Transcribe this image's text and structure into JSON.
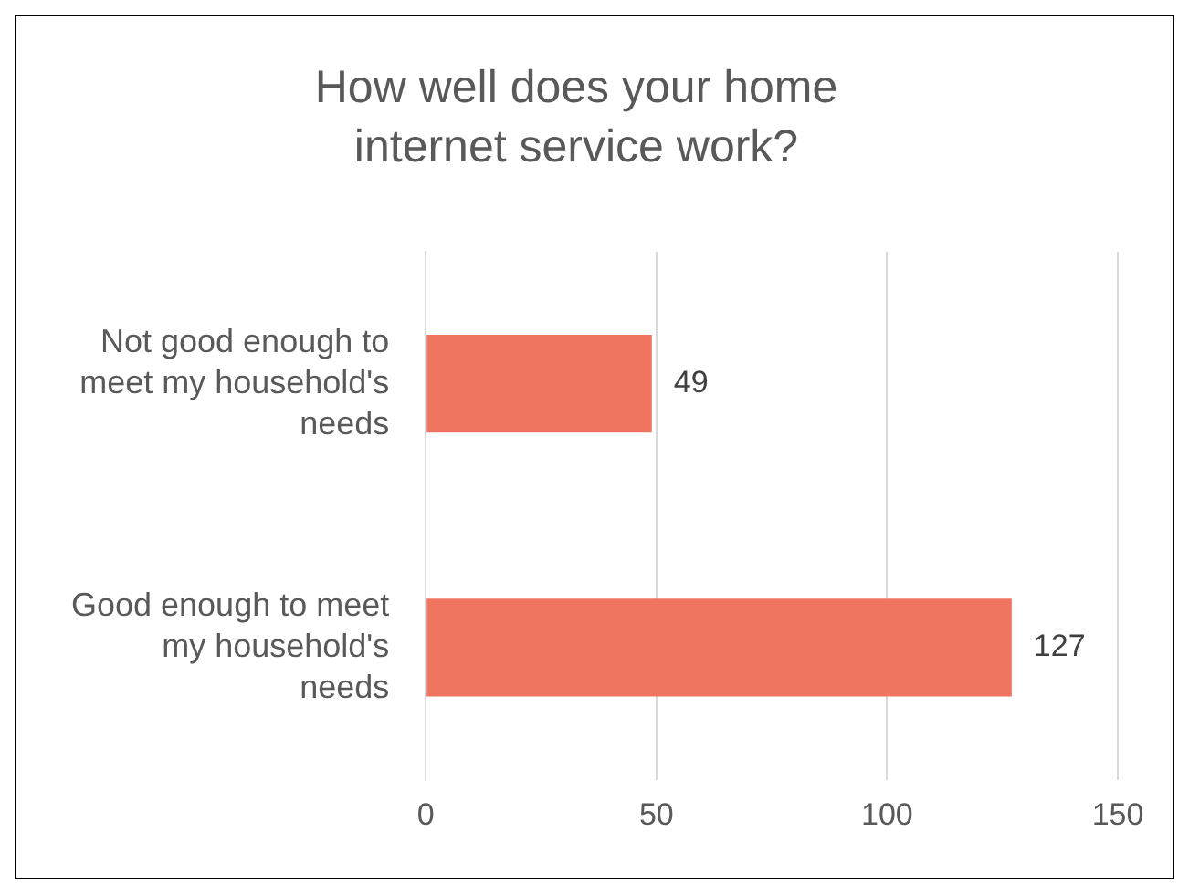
{
  "chart_data": {
    "type": "bar",
    "orientation": "horizontal",
    "title": "How well does your home internet service work?",
    "categories": [
      "Not good enough to meet my household's needs",
      "Good enough to meet my household's needs"
    ],
    "values": [
      49,
      127
    ],
    "color": "#ef7561",
    "xlim": [
      0,
      150
    ],
    "xticks": [
      0,
      50,
      100,
      150
    ],
    "grid": "x",
    "data_labels": true
  }
}
